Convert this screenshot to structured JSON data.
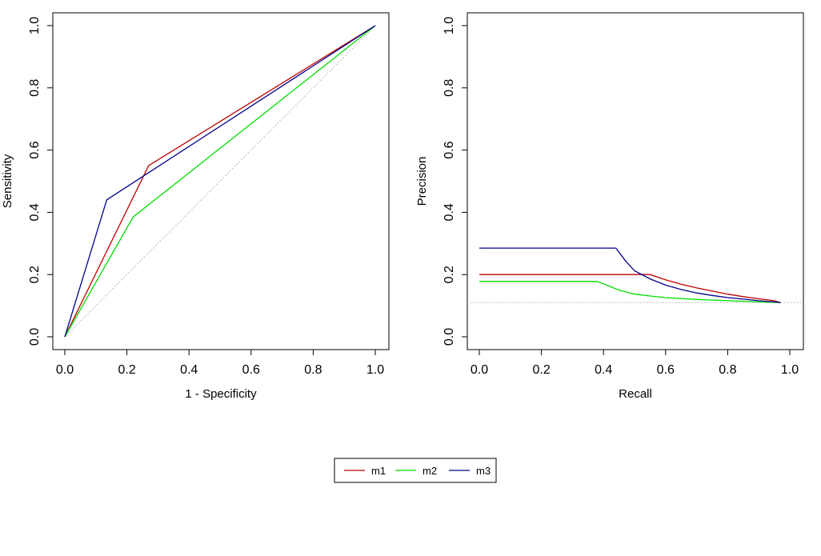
{
  "chart_data": [
    {
      "type": "line",
      "title": "",
      "xlabel": "1 - Specificity",
      "ylabel": "Sensitivity",
      "xlim": [
        0.0,
        1.0
      ],
      "ylim": [
        0.0,
        1.0
      ],
      "xticks": [
        "0.0",
        "0.2",
        "0.4",
        "0.6",
        "0.8",
        "1.0"
      ],
      "yticks": [
        "0.0",
        "0.2",
        "0.4",
        "0.6",
        "0.8",
        "1.0"
      ],
      "reference_line": {
        "points": [
          [
            0,
            0
          ],
          [
            1,
            1
          ]
        ],
        "style": "dotted",
        "color": "#bbbbbb"
      },
      "series": [
        {
          "name": "m1",
          "color": "#c00000",
          "points": [
            [
              0,
              0
            ],
            [
              0.27,
              0.55
            ],
            [
              1,
              1
            ]
          ]
        },
        {
          "name": "m2",
          "color": "#00dd00",
          "points": [
            [
              0,
              0
            ],
            [
              0.22,
              0.385
            ],
            [
              1,
              1
            ]
          ]
        },
        {
          "name": "m3",
          "color": "#00008b",
          "points": [
            [
              0,
              0
            ],
            [
              0.135,
              0.44
            ],
            [
              1,
              1
            ]
          ]
        }
      ]
    },
    {
      "type": "line",
      "title": "",
      "xlabel": "Recall",
      "ylabel": "Precision",
      "xlim": [
        0.0,
        1.0
      ],
      "ylim": [
        0.0,
        1.0
      ],
      "xticks": [
        "0.0",
        "0.2",
        "0.4",
        "0.6",
        "0.8",
        "1.0"
      ],
      "yticks": [
        "0.0",
        "0.2",
        "0.4",
        "0.6",
        "0.8",
        "1.0"
      ],
      "reference_line": {
        "points": [
          [
            -0.04,
            0.11
          ],
          [
            1.04,
            0.11
          ]
        ],
        "style": "dotted",
        "color": "#bbbbbb"
      },
      "series": [
        {
          "name": "m1",
          "color": "#c00000",
          "points": [
            [
              0,
              0.2
            ],
            [
              0.55,
              0.2
            ],
            [
              0.6,
              0.183
            ],
            [
              0.65,
              0.169
            ],
            [
              0.7,
              0.157
            ],
            [
              0.75,
              0.147
            ],
            [
              0.8,
              0.137
            ],
            [
              0.85,
              0.129
            ],
            [
              0.9,
              0.122
            ],
            [
              0.95,
              0.116
            ],
            [
              0.97,
              0.11
            ]
          ]
        },
        {
          "name": "m2",
          "color": "#00dd00",
          "points": [
            [
              0,
              0.178
            ],
            [
              0.38,
              0.178
            ],
            [
              0.45,
              0.15
            ],
            [
              0.5,
              0.137
            ],
            [
              0.55,
              0.131
            ],
            [
              0.6,
              0.126
            ],
            [
              0.7,
              0.12
            ],
            [
              0.8,
              0.116
            ],
            [
              0.9,
              0.112
            ],
            [
              0.97,
              0.11
            ]
          ]
        },
        {
          "name": "m3",
          "color": "#00008b",
          "points": [
            [
              0,
              0.285
            ],
            [
              0.44,
              0.285
            ],
            [
              0.47,
              0.245
            ],
            [
              0.5,
              0.212
            ],
            [
              0.55,
              0.186
            ],
            [
              0.6,
              0.166
            ],
            [
              0.65,
              0.152
            ],
            [
              0.7,
              0.141
            ],
            [
              0.75,
              0.133
            ],
            [
              0.8,
              0.126
            ],
            [
              0.85,
              0.121
            ],
            [
              0.9,
              0.116
            ],
            [
              0.95,
              0.112
            ],
            [
              0.97,
              0.11
            ]
          ]
        }
      ]
    }
  ],
  "legend": {
    "placement": "bottom-center",
    "items": [
      {
        "label": "m1",
        "color": "#c00000"
      },
      {
        "label": "m2",
        "color": "#00dd00"
      },
      {
        "label": "m3",
        "color": "#00008b"
      }
    ]
  }
}
